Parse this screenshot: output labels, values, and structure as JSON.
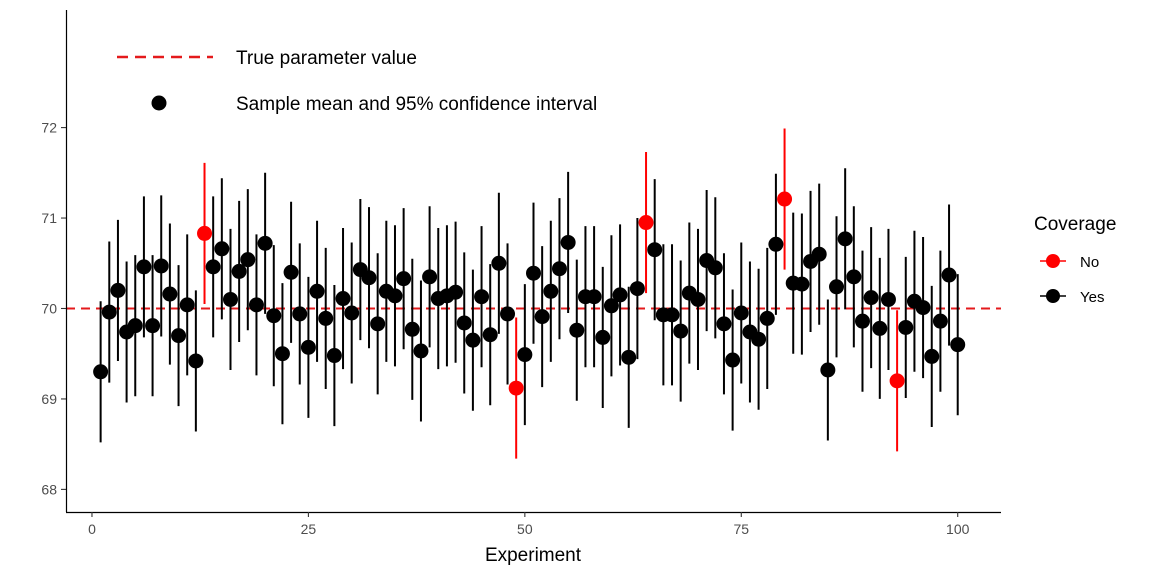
{
  "chart_data": {
    "type": "scatter",
    "xlabel": "Experiment",
    "ylabel": "",
    "xlim": [
      -3,
      105
    ],
    "ylim": [
      67.75,
      73.3
    ],
    "x_ticks": [
      0,
      25,
      50,
      75,
      100
    ],
    "y_ticks": [
      68,
      69,
      70,
      71,
      72
    ],
    "x_tick_labels": [
      "0",
      "25",
      "50",
      "75",
      "100"
    ],
    "y_tick_labels": [
      "68",
      "69",
      "70",
      "71",
      "72"
    ],
    "grid": false,
    "reference_line": {
      "y": 70,
      "color": "#e41a1c",
      "style": "dashed",
      "label": "True parameter value"
    },
    "inner_legend": {
      "line_label": "True parameter value",
      "point_label": "Sample mean and 95% confidence interval",
      "placement": "top-left"
    },
    "legend": {
      "title": "Coverage",
      "placement": "right",
      "entries": [
        {
          "label": "No",
          "color": "#ff0000"
        },
        {
          "label": "Yes",
          "color": "#000000"
        }
      ]
    },
    "colors": {
      "No": "#ff0000",
      "Yes": "#000000"
    },
    "points": [
      {
        "x": 1,
        "mean": 69.3,
        "lower": 68.52,
        "upper": 70.08,
        "coverage": "Yes"
      },
      {
        "x": 2,
        "mean": 69.96,
        "lower": 69.18,
        "upper": 70.74,
        "coverage": "Yes"
      },
      {
        "x": 3,
        "mean": 70.2,
        "lower": 69.42,
        "upper": 70.98,
        "coverage": "Yes"
      },
      {
        "x": 4,
        "mean": 69.74,
        "lower": 68.96,
        "upper": 70.52,
        "coverage": "Yes"
      },
      {
        "x": 5,
        "mean": 69.81,
        "lower": 69.03,
        "upper": 70.59,
        "coverage": "Yes"
      },
      {
        "x": 6,
        "mean": 70.46,
        "lower": 69.68,
        "upper": 71.24,
        "coverage": "Yes"
      },
      {
        "x": 7,
        "mean": 69.81,
        "lower": 69.03,
        "upper": 70.59,
        "coverage": "Yes"
      },
      {
        "x": 8,
        "mean": 70.47,
        "lower": 69.69,
        "upper": 71.25,
        "coverage": "Yes"
      },
      {
        "x": 9,
        "mean": 70.16,
        "lower": 69.38,
        "upper": 70.94,
        "coverage": "Yes"
      },
      {
        "x": 10,
        "mean": 69.7,
        "lower": 68.92,
        "upper": 70.48,
        "coverage": "Yes"
      },
      {
        "x": 11,
        "mean": 70.04,
        "lower": 69.26,
        "upper": 70.82,
        "coverage": "Yes"
      },
      {
        "x": 12,
        "mean": 69.42,
        "lower": 68.64,
        "upper": 70.2,
        "coverage": "Yes"
      },
      {
        "x": 13,
        "mean": 70.83,
        "lower": 70.05,
        "upper": 71.61,
        "coverage": "No"
      },
      {
        "x": 14,
        "mean": 70.46,
        "lower": 69.68,
        "upper": 71.24,
        "coverage": "Yes"
      },
      {
        "x": 15,
        "mean": 70.66,
        "lower": 69.88,
        "upper": 71.44,
        "coverage": "Yes"
      },
      {
        "x": 16,
        "mean": 70.1,
        "lower": 69.32,
        "upper": 70.88,
        "coverage": "Yes"
      },
      {
        "x": 17,
        "mean": 70.41,
        "lower": 69.63,
        "upper": 71.19,
        "coverage": "Yes"
      },
      {
        "x": 18,
        "mean": 70.54,
        "lower": 69.76,
        "upper": 71.32,
        "coverage": "Yes"
      },
      {
        "x": 19,
        "mean": 70.04,
        "lower": 69.26,
        "upper": 70.82,
        "coverage": "Yes"
      },
      {
        "x": 20,
        "mean": 70.72,
        "lower": 69.94,
        "upper": 71.5,
        "coverage": "Yes"
      },
      {
        "x": 21,
        "mean": 69.92,
        "lower": 69.14,
        "upper": 70.7,
        "coverage": "Yes"
      },
      {
        "x": 22,
        "mean": 69.5,
        "lower": 68.72,
        "upper": 70.28,
        "coverage": "Yes"
      },
      {
        "x": 23,
        "mean": 70.4,
        "lower": 69.62,
        "upper": 71.18,
        "coverage": "Yes"
      },
      {
        "x": 24,
        "mean": 69.94,
        "lower": 69.16,
        "upper": 70.72,
        "coverage": "Yes"
      },
      {
        "x": 25,
        "mean": 69.57,
        "lower": 68.79,
        "upper": 70.35,
        "coverage": "Yes"
      },
      {
        "x": 26,
        "mean": 70.19,
        "lower": 69.41,
        "upper": 70.97,
        "coverage": "Yes"
      },
      {
        "x": 27,
        "mean": 69.89,
        "lower": 69.11,
        "upper": 70.67,
        "coverage": "Yes"
      },
      {
        "x": 28,
        "mean": 69.48,
        "lower": 68.7,
        "upper": 70.26,
        "coverage": "Yes"
      },
      {
        "x": 29,
        "mean": 70.11,
        "lower": 69.33,
        "upper": 70.89,
        "coverage": "Yes"
      },
      {
        "x": 30,
        "mean": 69.95,
        "lower": 69.17,
        "upper": 70.73,
        "coverage": "Yes"
      },
      {
        "x": 31,
        "mean": 70.43,
        "lower": 69.65,
        "upper": 71.21,
        "coverage": "Yes"
      },
      {
        "x": 32,
        "mean": 70.34,
        "lower": 69.56,
        "upper": 71.12,
        "coverage": "Yes"
      },
      {
        "x": 33,
        "mean": 69.83,
        "lower": 69.05,
        "upper": 70.61,
        "coverage": "Yes"
      },
      {
        "x": 34,
        "mean": 70.19,
        "lower": 69.41,
        "upper": 70.97,
        "coverage": "Yes"
      },
      {
        "x": 35,
        "mean": 70.14,
        "lower": 69.36,
        "upper": 70.92,
        "coverage": "Yes"
      },
      {
        "x": 36,
        "mean": 70.33,
        "lower": 69.55,
        "upper": 71.11,
        "coverage": "Yes"
      },
      {
        "x": 37,
        "mean": 69.77,
        "lower": 68.99,
        "upper": 70.55,
        "coverage": "Yes"
      },
      {
        "x": 38,
        "mean": 69.53,
        "lower": 68.75,
        "upper": 70.31,
        "coverage": "Yes"
      },
      {
        "x": 39,
        "mean": 70.35,
        "lower": 69.57,
        "upper": 71.13,
        "coverage": "Yes"
      },
      {
        "x": 40,
        "mean": 70.11,
        "lower": 69.33,
        "upper": 70.89,
        "coverage": "Yes"
      },
      {
        "x": 41,
        "mean": 70.14,
        "lower": 69.36,
        "upper": 70.92,
        "coverage": "Yes"
      },
      {
        "x": 42,
        "mean": 70.18,
        "lower": 69.4,
        "upper": 70.96,
        "coverage": "Yes"
      },
      {
        "x": 43,
        "mean": 69.84,
        "lower": 69.06,
        "upper": 70.62,
        "coverage": "Yes"
      },
      {
        "x": 44,
        "mean": 69.65,
        "lower": 68.87,
        "upper": 70.43,
        "coverage": "Yes"
      },
      {
        "x": 45,
        "mean": 70.13,
        "lower": 69.35,
        "upper": 70.91,
        "coverage": "Yes"
      },
      {
        "x": 46,
        "mean": 69.71,
        "lower": 68.93,
        "upper": 70.49,
        "coverage": "Yes"
      },
      {
        "x": 47,
        "mean": 70.5,
        "lower": 69.72,
        "upper": 71.28,
        "coverage": "Yes"
      },
      {
        "x": 48,
        "mean": 69.94,
        "lower": 69.16,
        "upper": 70.72,
        "coverage": "Yes"
      },
      {
        "x": 49,
        "mean": 69.12,
        "lower": 68.34,
        "upper": 69.9,
        "coverage": "No"
      },
      {
        "x": 50,
        "mean": 69.49,
        "lower": 68.71,
        "upper": 70.27,
        "coverage": "Yes"
      },
      {
        "x": 51,
        "mean": 70.39,
        "lower": 69.61,
        "upper": 71.17,
        "coverage": "Yes"
      },
      {
        "x": 52,
        "mean": 69.91,
        "lower": 69.13,
        "upper": 70.69,
        "coverage": "Yes"
      },
      {
        "x": 53,
        "mean": 70.19,
        "lower": 69.41,
        "upper": 70.97,
        "coverage": "Yes"
      },
      {
        "x": 54,
        "mean": 70.44,
        "lower": 69.66,
        "upper": 71.22,
        "coverage": "Yes"
      },
      {
        "x": 55,
        "mean": 70.73,
        "lower": 69.95,
        "upper": 71.51,
        "coverage": "Yes"
      },
      {
        "x": 56,
        "mean": 69.76,
        "lower": 68.98,
        "upper": 70.54,
        "coverage": "Yes"
      },
      {
        "x": 57,
        "mean": 70.13,
        "lower": 69.35,
        "upper": 70.91,
        "coverage": "Yes"
      },
      {
        "x": 58,
        "mean": 70.13,
        "lower": 69.35,
        "upper": 70.91,
        "coverage": "Yes"
      },
      {
        "x": 59,
        "mean": 69.68,
        "lower": 68.9,
        "upper": 70.46,
        "coverage": "Yes"
      },
      {
        "x": 60,
        "mean": 70.03,
        "lower": 69.25,
        "upper": 70.81,
        "coverage": "Yes"
      },
      {
        "x": 61,
        "mean": 70.15,
        "lower": 69.37,
        "upper": 70.93,
        "coverage": "Yes"
      },
      {
        "x": 62,
        "mean": 69.46,
        "lower": 68.68,
        "upper": 70.24,
        "coverage": "Yes"
      },
      {
        "x": 63,
        "mean": 70.22,
        "lower": 69.44,
        "upper": 71.0,
        "coverage": "Yes"
      },
      {
        "x": 64,
        "mean": 70.95,
        "lower": 70.17,
        "upper": 71.73,
        "coverage": "No"
      },
      {
        "x": 65,
        "mean": 70.65,
        "lower": 69.87,
        "upper": 71.43,
        "coverage": "Yes"
      },
      {
        "x": 66,
        "mean": 69.93,
        "lower": 69.15,
        "upper": 70.71,
        "coverage": "Yes"
      },
      {
        "x": 67,
        "mean": 69.93,
        "lower": 69.15,
        "upper": 70.71,
        "coverage": "Yes"
      },
      {
        "x": 68,
        "mean": 69.75,
        "lower": 68.97,
        "upper": 70.53,
        "coverage": "Yes"
      },
      {
        "x": 69,
        "mean": 70.17,
        "lower": 69.39,
        "upper": 70.95,
        "coverage": "Yes"
      },
      {
        "x": 70,
        "mean": 70.1,
        "lower": 69.32,
        "upper": 70.88,
        "coverage": "Yes"
      },
      {
        "x": 71,
        "mean": 70.53,
        "lower": 69.75,
        "upper": 71.31,
        "coverage": "Yes"
      },
      {
        "x": 72,
        "mean": 70.45,
        "lower": 69.67,
        "upper": 71.23,
        "coverage": "Yes"
      },
      {
        "x": 73,
        "mean": 69.83,
        "lower": 69.05,
        "upper": 70.61,
        "coverage": "Yes"
      },
      {
        "x": 74,
        "mean": 69.43,
        "lower": 68.65,
        "upper": 70.21,
        "coverage": "Yes"
      },
      {
        "x": 75,
        "mean": 69.95,
        "lower": 69.17,
        "upper": 70.73,
        "coverage": "Yes"
      },
      {
        "x": 76,
        "mean": 69.74,
        "lower": 68.96,
        "upper": 70.52,
        "coverage": "Yes"
      },
      {
        "x": 77,
        "mean": 69.66,
        "lower": 68.88,
        "upper": 70.44,
        "coverage": "Yes"
      },
      {
        "x": 78,
        "mean": 69.89,
        "lower": 69.11,
        "upper": 70.67,
        "coverage": "Yes"
      },
      {
        "x": 79,
        "mean": 70.71,
        "lower": 69.93,
        "upper": 71.49,
        "coverage": "Yes"
      },
      {
        "x": 80,
        "mean": 71.21,
        "lower": 70.43,
        "upper": 71.99,
        "coverage": "No"
      },
      {
        "x": 81,
        "mean": 70.28,
        "lower": 69.5,
        "upper": 71.06,
        "coverage": "Yes"
      },
      {
        "x": 82,
        "mean": 70.27,
        "lower": 69.49,
        "upper": 71.05,
        "coverage": "Yes"
      },
      {
        "x": 83,
        "mean": 70.52,
        "lower": 69.74,
        "upper": 71.3,
        "coverage": "Yes"
      },
      {
        "x": 84,
        "mean": 70.6,
        "lower": 69.82,
        "upper": 71.38,
        "coverage": "Yes"
      },
      {
        "x": 85,
        "mean": 69.32,
        "lower": 68.54,
        "upper": 70.1,
        "coverage": "Yes"
      },
      {
        "x": 86,
        "mean": 70.24,
        "lower": 69.46,
        "upper": 71.02,
        "coverage": "Yes"
      },
      {
        "x": 87,
        "mean": 70.77,
        "lower": 69.99,
        "upper": 71.55,
        "coverage": "Yes"
      },
      {
        "x": 88,
        "mean": 70.35,
        "lower": 69.57,
        "upper": 71.13,
        "coverage": "Yes"
      },
      {
        "x": 89,
        "mean": 69.86,
        "lower": 69.08,
        "upper": 70.64,
        "coverage": "Yes"
      },
      {
        "x": 90,
        "mean": 70.12,
        "lower": 69.34,
        "upper": 70.9,
        "coverage": "Yes"
      },
      {
        "x": 91,
        "mean": 69.78,
        "lower": 69.0,
        "upper": 70.56,
        "coverage": "Yes"
      },
      {
        "x": 92,
        "mean": 70.1,
        "lower": 69.32,
        "upper": 70.88,
        "coverage": "Yes"
      },
      {
        "x": 93,
        "mean": 69.2,
        "lower": 68.42,
        "upper": 69.98,
        "coverage": "No"
      },
      {
        "x": 94,
        "mean": 69.79,
        "lower": 69.01,
        "upper": 70.57,
        "coverage": "Yes"
      },
      {
        "x": 95,
        "mean": 70.08,
        "lower": 69.3,
        "upper": 70.86,
        "coverage": "Yes"
      },
      {
        "x": 96,
        "mean": 70.01,
        "lower": 69.23,
        "upper": 70.79,
        "coverage": "Yes"
      },
      {
        "x": 97,
        "mean": 69.47,
        "lower": 68.69,
        "upper": 70.25,
        "coverage": "Yes"
      },
      {
        "x": 98,
        "mean": 69.86,
        "lower": 69.08,
        "upper": 70.64,
        "coverage": "Yes"
      },
      {
        "x": 99,
        "mean": 70.37,
        "lower": 69.59,
        "upper": 71.15,
        "coverage": "Yes"
      },
      {
        "x": 100,
        "mean": 69.6,
        "lower": 68.82,
        "upper": 70.38,
        "coverage": "Yes"
      }
    ]
  }
}
